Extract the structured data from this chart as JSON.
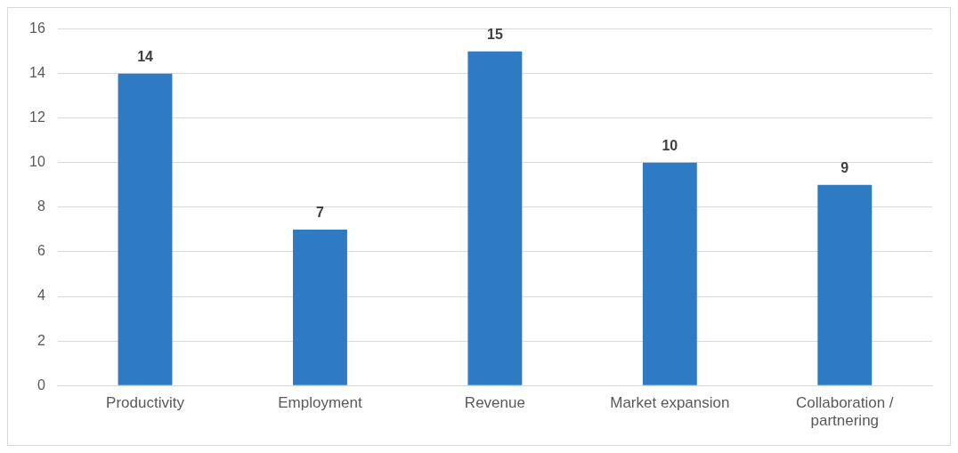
{
  "chart_data": {
    "type": "bar",
    "categories": [
      "Productivity",
      "Employment",
      "Revenue",
      "Market expansion",
      "Collaboration / partnering"
    ],
    "values": [
      14,
      7,
      15,
      10,
      9
    ],
    "color": "#2e7bc3",
    "ylim": [
      0,
      16
    ],
    "yticks": [
      0,
      2,
      4,
      6,
      8,
      10,
      12,
      14,
      16
    ],
    "grid": "y",
    "data_labels": true,
    "legend": false
  }
}
